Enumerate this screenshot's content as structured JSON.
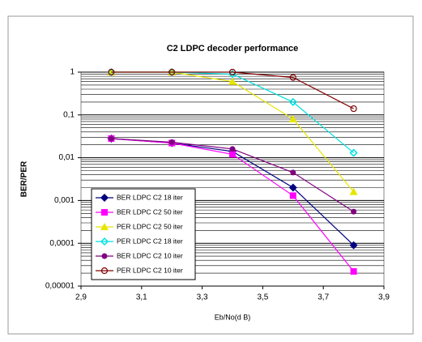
{
  "chart_data": {
    "type": "line",
    "title": "C2 LDPC decoder performance",
    "x_label": "Eb/No(d B)",
    "y_label": "BER/PER",
    "x": [
      3.0,
      3.2,
      3.4,
      3.6,
      3.8
    ],
    "series": [
      {
        "name": "BER LDPC C2 18 iter",
        "color": "#000080",
        "marker": "diamond",
        "values": [
          0.028,
          0.022,
          0.014,
          0.002,
          9e-05
        ]
      },
      {
        "name": "BER LDPC C2 50 iter",
        "color": "#ff00ff",
        "marker": "square",
        "values": [
          0.028,
          0.022,
          0.012,
          0.0013,
          2.2e-05
        ]
      },
      {
        "name": "PER LDPC C2 50 iter",
        "color": "#e6e600",
        "marker": "triangle",
        "values": [
          1,
          1,
          0.6,
          0.08,
          0.0016
        ]
      },
      {
        "name": "PER LDPC C2 18 iter",
        "color": "#00e0e0",
        "marker": "cross",
        "values": [
          1,
          1,
          0.9,
          0.2,
          0.013
        ]
      },
      {
        "name": "BER LDPC C2 10 iter",
        "color": "#800080",
        "marker": "circle",
        "values": [
          0.028,
          0.023,
          0.016,
          0.0045,
          0.00055
        ]
      },
      {
        "name": "PER LDPC C2 10 iter",
        "color": "#800000",
        "marker": "open-circle",
        "values": [
          1,
          1,
          1,
          0.75,
          0.14
        ]
      }
    ],
    "xlim": [
      2.9,
      3.9
    ],
    "xticks": [
      {
        "value": 2.9,
        "label": "2,9"
      },
      {
        "value": 3.1,
        "label": "3,1"
      },
      {
        "value": 3.3,
        "label": "3,3"
      },
      {
        "value": 3.5,
        "label": "3,5"
      },
      {
        "value": 3.7,
        "label": "3,7"
      },
      {
        "value": 3.9,
        "label": "3,9"
      }
    ],
    "ylim": [
      1e-05,
      1
    ],
    "y_scale": "log",
    "yticks": [
      1,
      {
        "value": 0.1,
        "label": "0,1"
      },
      {
        "value": 0.01,
        "label": "0,01"
      },
      {
        "value": 0.001,
        "label": "0,001"
      },
      {
        "value": 0.0001,
        "label": "0,0001"
      },
      {
        "value": 1e-05,
        "label": "0,00001"
      }
    ],
    "grid": true,
    "legend": "lower-left"
  }
}
